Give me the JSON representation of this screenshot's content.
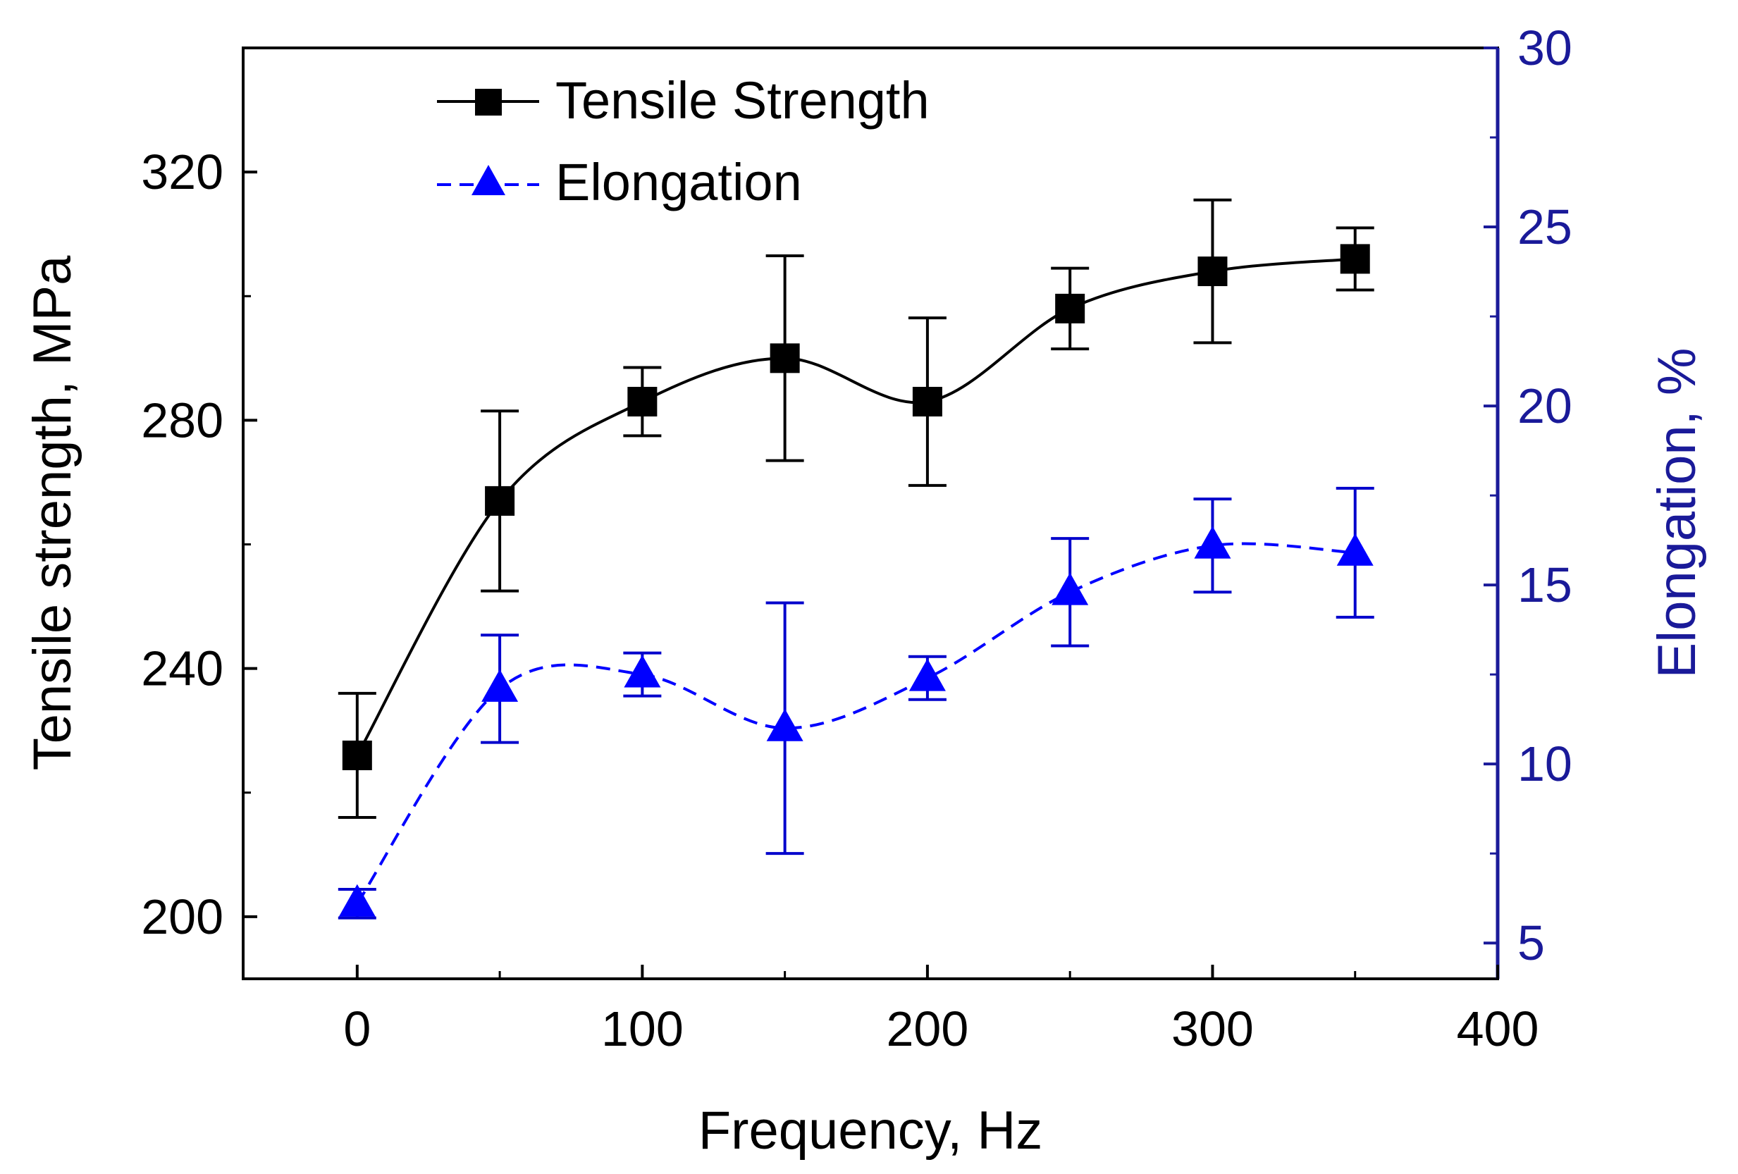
{
  "chart_data": {
    "type": "line",
    "xlabel": "Frequency, Hz",
    "ylabel_left": "Tensile strength, MPa",
    "ylabel_right": "Elongation, %",
    "x": [
      0,
      50,
      100,
      150,
      200,
      250,
      300,
      350
    ],
    "xlim": [
      -40,
      400
    ],
    "ylim_left": [
      190,
      340
    ],
    "ylim_right": [
      4,
      30
    ],
    "x_ticks": [
      0,
      100,
      200,
      300,
      400
    ],
    "y_ticks_left": [
      200,
      240,
      280,
      320
    ],
    "y_ticks_right": [
      5,
      10,
      15,
      20,
      25,
      30
    ],
    "grid": false,
    "legend_position": "top-left",
    "series": [
      {
        "name": "Tensile Strength",
        "axis": "left",
        "color": "#000000",
        "marker": "square",
        "line_style": "solid",
        "values": [
          226,
          267,
          283,
          290,
          283,
          298,
          304,
          306
        ],
        "error_bars": [
          10,
          14.5,
          5.5,
          16.5,
          13.5,
          6.5,
          11.5,
          5
        ]
      },
      {
        "name": "Elongation",
        "axis": "right",
        "color": "#0000ff",
        "error_color": "#0000cc",
        "marker": "triangle",
        "line_style": "dashed",
        "values": [
          6.1,
          12.1,
          12.5,
          11.0,
          12.4,
          14.8,
          16.1,
          15.9
        ],
        "error_bars": [
          0.4,
          1.5,
          0.6,
          3.5,
          0.6,
          1.5,
          1.3,
          1.8
        ]
      }
    ],
    "right_axis_color": "#1a1a99"
  }
}
